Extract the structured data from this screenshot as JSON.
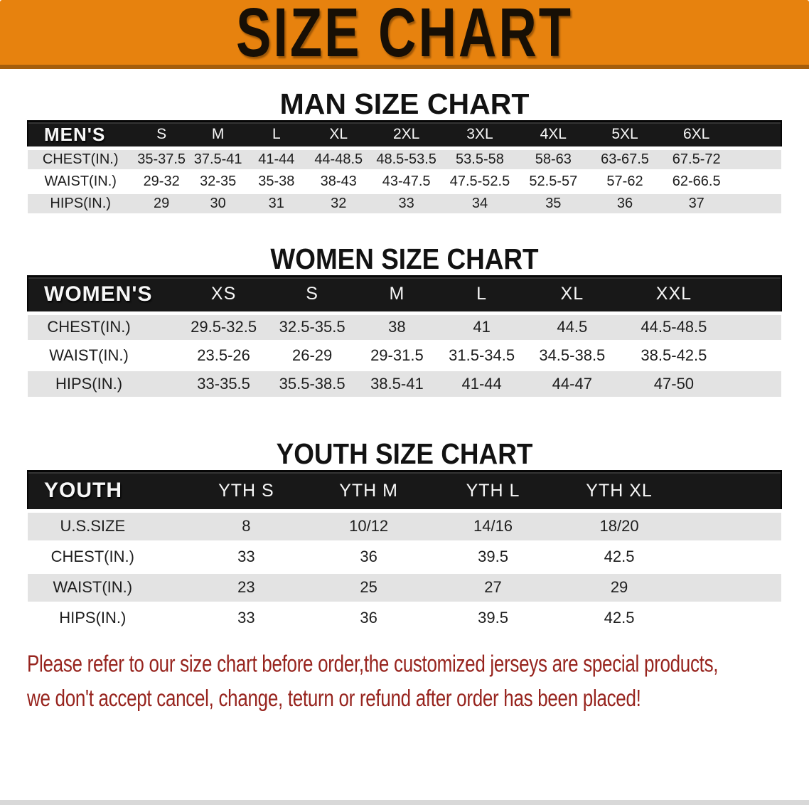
{
  "banner": {
    "title": "SIZE CHART",
    "bg_color": "#e7820e",
    "edge_color": "#a55e0c",
    "text_color": "#170f05"
  },
  "colors": {
    "header_bar": "#181818",
    "row_stripe": "#e3e3e3",
    "disclaimer_text": "#97241e"
  },
  "sections": [
    {
      "heading": "MAN SIZE CHART",
      "corner_label": "MEN'S",
      "columns": [
        "S",
        "M",
        "L",
        "XL",
        "2XL",
        "3XL",
        "4XL",
        "5XL",
        "6XL"
      ],
      "rows": [
        {
          "label": "CHEST(IN.)",
          "values": [
            "35-37.5",
            "37.5-41",
            "41-44",
            "44-48.5",
            "48.5-53.5",
            "53.5-58",
            "58-63",
            "63-67.5",
            "67.5-72"
          ]
        },
        {
          "label": "WAIST(IN.)",
          "values": [
            "29-32",
            "32-35",
            "35-38",
            "38-43",
            "43-47.5",
            "47.5-52.5",
            "52.5-57",
            "57-62",
            "62-66.5"
          ]
        },
        {
          "label": "HIPS(IN.)",
          "values": [
            "29",
            "30",
            "31",
            "32",
            "33",
            "34",
            "35",
            "36",
            "37"
          ]
        }
      ]
    },
    {
      "heading": "WOMEN SIZE CHART",
      "corner_label": "WOMEN'S",
      "columns": [
        "XS",
        "S",
        "M",
        "L",
        "XL",
        "XXL"
      ],
      "rows": [
        {
          "label": "CHEST(IN.)",
          "values": [
            "29.5-32.5",
            "32.5-35.5",
            "38",
            "41",
            "44.5",
            "44.5-48.5"
          ]
        },
        {
          "label": "WAIST(IN.)",
          "values": [
            "23.5-26",
            "26-29",
            "29-31.5",
            "31.5-34.5",
            "34.5-38.5",
            "38.5-42.5"
          ]
        },
        {
          "label": "HIPS(IN.)",
          "values": [
            "33-35.5",
            "35.5-38.5",
            "38.5-41",
            "41-44",
            "44-47",
            "47-50"
          ]
        }
      ]
    },
    {
      "heading": "YOUTH SIZE CHART",
      "corner_label": "YOUTH",
      "columns": [
        "YTH S",
        "YTH M",
        "YTH L",
        "YTH XL"
      ],
      "rows": [
        {
          "label": "U.S.SIZE",
          "values": [
            "8",
            "10/12",
            "14/16",
            "18/20"
          ]
        },
        {
          "label": "CHEST(IN.)",
          "values": [
            "33",
            "36",
            "39.5",
            "42.5"
          ]
        },
        {
          "label": "WAIST(IN.)",
          "values": [
            "23",
            "25",
            "27",
            "29"
          ]
        },
        {
          "label": "HIPS(IN.)",
          "values": [
            "33",
            "36",
            "39.5",
            "42.5"
          ]
        }
      ]
    }
  ],
  "disclaimer": {
    "line1": "Please refer to our size chart before order,the customized jerseys are special products,",
    "line2": "we don't accept cancel, change, teturn or refund after order has been placed!"
  }
}
